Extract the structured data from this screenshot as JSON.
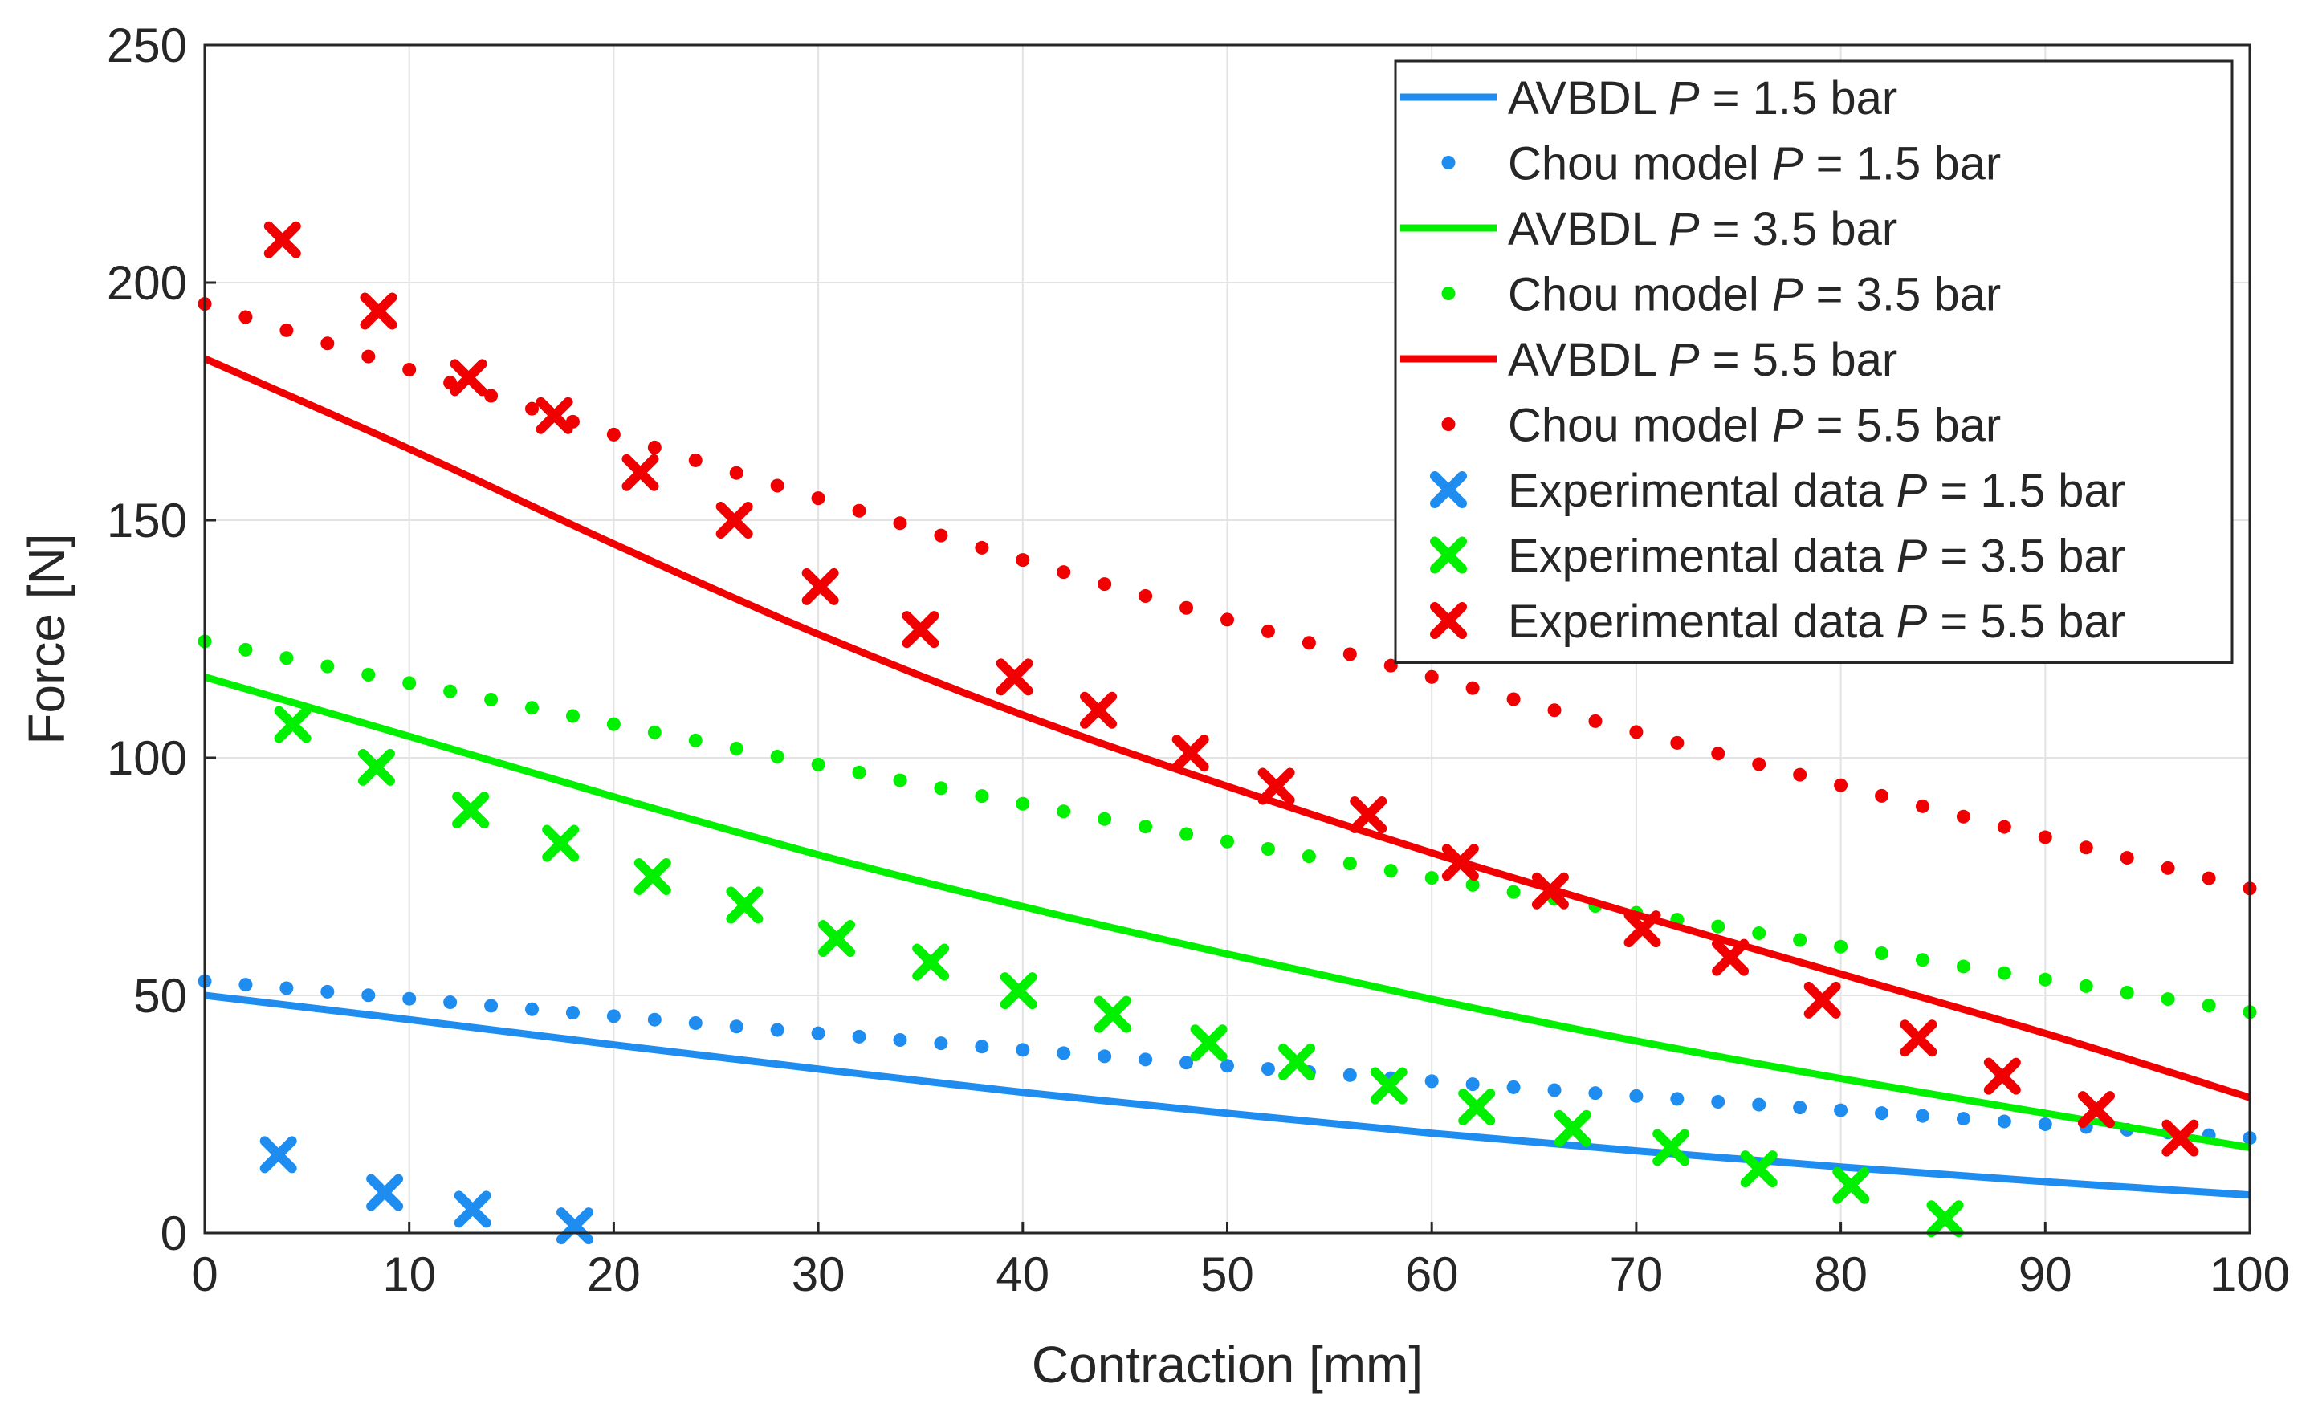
{
  "chart_data": {
    "type": "line",
    "title": "",
    "xlabel": "Contraction [mm]",
    "ylabel": "Force [N]",
    "xlim": [
      0,
      100
    ],
    "ylim": [
      0,
      250
    ],
    "xticks": [
      0,
      10,
      20,
      30,
      40,
      50,
      60,
      70,
      80,
      90,
      100
    ],
    "yticks": [
      0,
      50,
      100,
      150,
      200,
      250
    ],
    "grid": true,
    "legend_position": "top-right",
    "colors": {
      "p15": "#1f8df0",
      "p35": "#00f000",
      "p55": "#f00000"
    },
    "series": [
      {
        "name": "AVBDL  P = 1.5 bar",
        "legend": [
          "AVBDL  ",
          "P",
          " = 1.5 bar"
        ],
        "style": "line",
        "color": "#1f8df0",
        "x": [
          0,
          10,
          20,
          30,
          40,
          50,
          60,
          70,
          80,
          90,
          100
        ],
        "y": [
          50,
          44.9,
          39.6,
          34.5,
          29.6,
          25.2,
          21.0,
          17.3,
          13.9,
          10.8,
          8
        ]
      },
      {
        "name": "Chou model  P = 1.5 bar",
        "legend": [
          "Chou model  ",
          "P",
          " = 1.5 bar"
        ],
        "style": "dots",
        "color": "#1f8df0",
        "x": [
          0,
          100
        ],
        "y": [
          53,
          20
        ]
      },
      {
        "name": "AVBDL  P = 3.5 bar",
        "legend": [
          "AVBDL  ",
          "P",
          " = 3.5 bar"
        ],
        "style": "line",
        "color": "#00f000",
        "x": [
          0,
          10,
          20,
          30,
          40,
          50,
          60,
          70,
          80,
          90,
          100
        ],
        "y": [
          117,
          104.5,
          91.8,
          79.6,
          68.7,
          58.7,
          49.2,
          40.4,
          32.5,
          25.2,
          18
        ]
      },
      {
        "name": "Chou model  P = 3.5 bar",
        "legend": [
          "Chou model  ",
          "P",
          " = 3.5 bar"
        ],
        "style": "dots",
        "color": "#00f000",
        "x": [
          0,
          100
        ],
        "y": [
          124.5,
          46.5
        ]
      },
      {
        "name": "AVBDL  P = 5.5 bar",
        "legend": [
          "AVBDL  ",
          "P",
          " = 5.5 bar"
        ],
        "style": "line",
        "color": "#f00000",
        "x": [
          0,
          10,
          20,
          30,
          40,
          50,
          60,
          70,
          80,
          90,
          100
        ],
        "y": [
          184,
          165,
          145,
          126,
          109,
          94,
          80,
          67,
          54.5,
          42,
          28.5
        ]
      },
      {
        "name": "Chou model  P = 5.5 bar",
        "legend": [
          "Chou model  ",
          "P",
          " = 5.5 bar"
        ],
        "style": "dots",
        "color": "#f00000",
        "x": [
          0,
          100
        ],
        "y": [
          195.5,
          72.5
        ]
      },
      {
        "name": "Experimental data  P = 1.5 bar",
        "legend": [
          "Experimental data  ",
          "P",
          " = 1.5 bar"
        ],
        "style": "cross",
        "color": "#1f8df0",
        "x": [
          3.6,
          8.8,
          13.1,
          18.1
        ],
        "y": [
          16.5,
          8.5,
          5,
          1.5
        ]
      },
      {
        "name": "Experimental data  P = 3.5 bar",
        "legend": [
          "Experimental data  ",
          "P",
          " = 3.5 bar"
        ],
        "style": "cross",
        "color": "#00f000",
        "x": [
          4.3,
          8.4,
          13.0,
          17.4,
          21.9,
          26.4,
          30.9,
          35.5,
          39.8,
          44.4,
          49.1,
          53.4,
          57.9,
          62.2,
          66.9,
          71.7,
          76.0,
          80.5,
          85.1
        ],
        "y": [
          107,
          98,
          89,
          82,
          75,
          69,
          62,
          57,
          51,
          46,
          40,
          36,
          31,
          26.5,
          22,
          18,
          13.5,
          10,
          3
        ]
      },
      {
        "name": "Experimental data  P = 5.5 bar",
        "legend": [
          "Experimental data  ",
          "P",
          " = 5.5 bar"
        ],
        "style": "cross",
        "color": "#f00000",
        "x": [
          3.8,
          8.5,
          12.9,
          17.1,
          21.3,
          25.9,
          30.1,
          35.0,
          39.6,
          43.7,
          48.2,
          52.4,
          56.9,
          61.4,
          65.8,
          70.3,
          74.6,
          79.1,
          83.8,
          87.9,
          92.5,
          96.6
        ],
        "y": [
          209,
          194,
          180,
          172,
          160,
          150,
          136,
          127,
          117,
          110,
          101,
          94,
          88,
          78,
          72,
          64,
          58,
          49,
          41,
          33,
          26,
          20
        ]
      }
    ]
  }
}
